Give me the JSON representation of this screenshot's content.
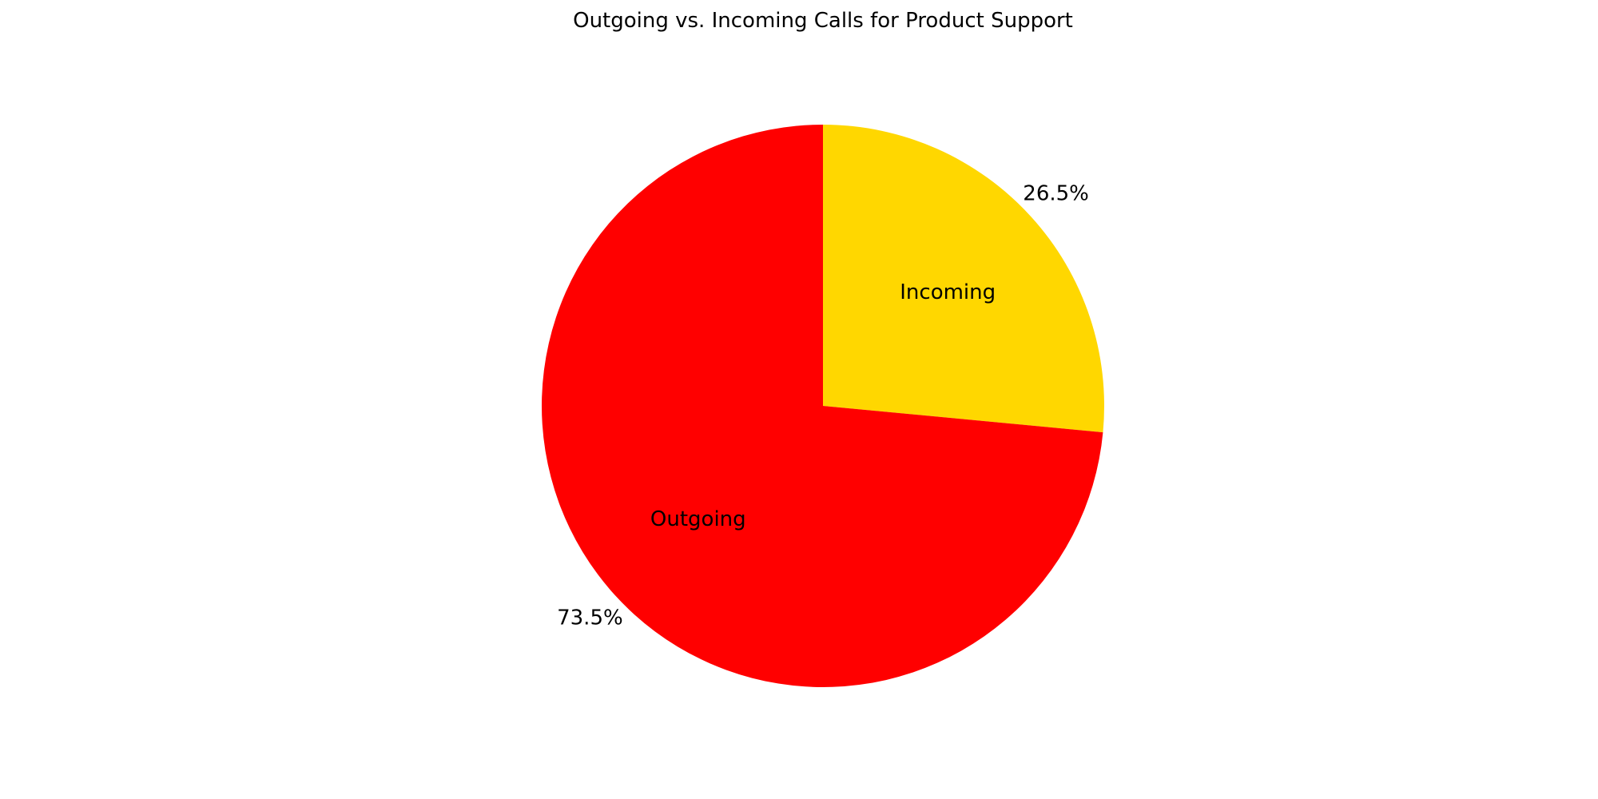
{
  "chart_data": {
    "type": "pie",
    "title": "Outgoing vs. Incoming Calls for Product Support",
    "slices": [
      {
        "label": "Incoming",
        "value": 26.5,
        "percent_label": "26.5%",
        "color": "#FFD700"
      },
      {
        "label": "Outgoing",
        "value": 73.5,
        "percent_label": "73.5%",
        "color": "#FF0000"
      }
    ],
    "start_angle_deg": 90,
    "direction": "clockwise"
  }
}
